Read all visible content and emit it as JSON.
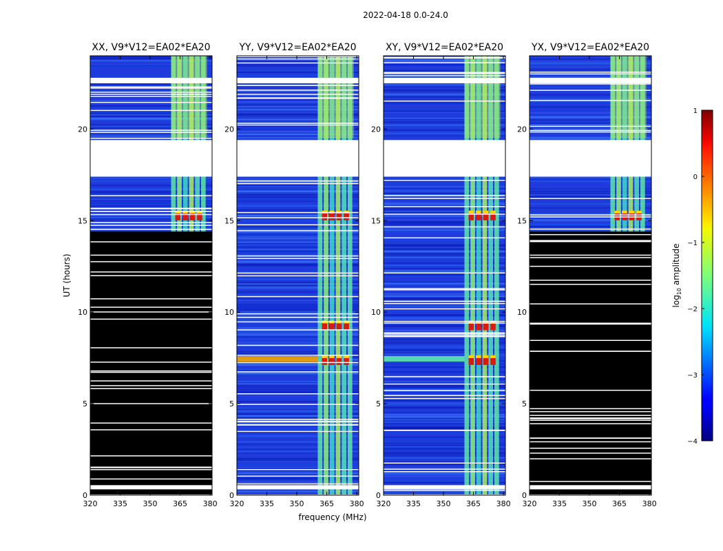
{
  "chart_data": {
    "type": "heatmap",
    "suptitle": "2022-04-18 0.0-24.0",
    "xlabel": "frequency (MHz)",
    "ylabel": "UT (hours)",
    "xlim": [
      320,
      381
    ],
    "ylim": [
      0,
      24
    ],
    "xticks": [
      320,
      335,
      350,
      365,
      380
    ],
    "yticks": [
      0,
      5,
      10,
      15,
      20
    ],
    "colorbar": {
      "label": "log",
      "label_sub": "10",
      "label_suffix": " amplitude",
      "range": [
        -4,
        1
      ],
      "ticks": [
        1,
        0,
        -1,
        -2,
        -3,
        -4
      ],
      "tick_labels": [
        "1",
        "0",
        "−1",
        "−2",
        "−3",
        "−4"
      ]
    },
    "panels": [
      {
        "title": "XX, V9*V12=EA02*EA20",
        "pol": "XX",
        "flag_hours": [
          0,
          14.4
        ]
      },
      {
        "title": "YY, V9*V12=EA02*EA20",
        "pol": "YY",
        "flag_hours": null
      },
      {
        "title": "XY, V9*V12=EA02*EA20",
        "pol": "XY",
        "flag_hours": null
      },
      {
        "title": "YX, V9*V12=EA02*EA20",
        "pol": "YX",
        "flag_hours": [
          0,
          14.4
        ]
      }
    ],
    "rfi_band_mhz": [
      360.5,
      378.5
    ],
    "gaps_hours": [
      [
        17.4,
        19.4
      ],
      [
        22.5,
        22.8
      ],
      [
        0.32,
        0.55
      ]
    ],
    "hot_rows_hours": [
      7.3,
      9.2,
      15.2
    ]
  }
}
